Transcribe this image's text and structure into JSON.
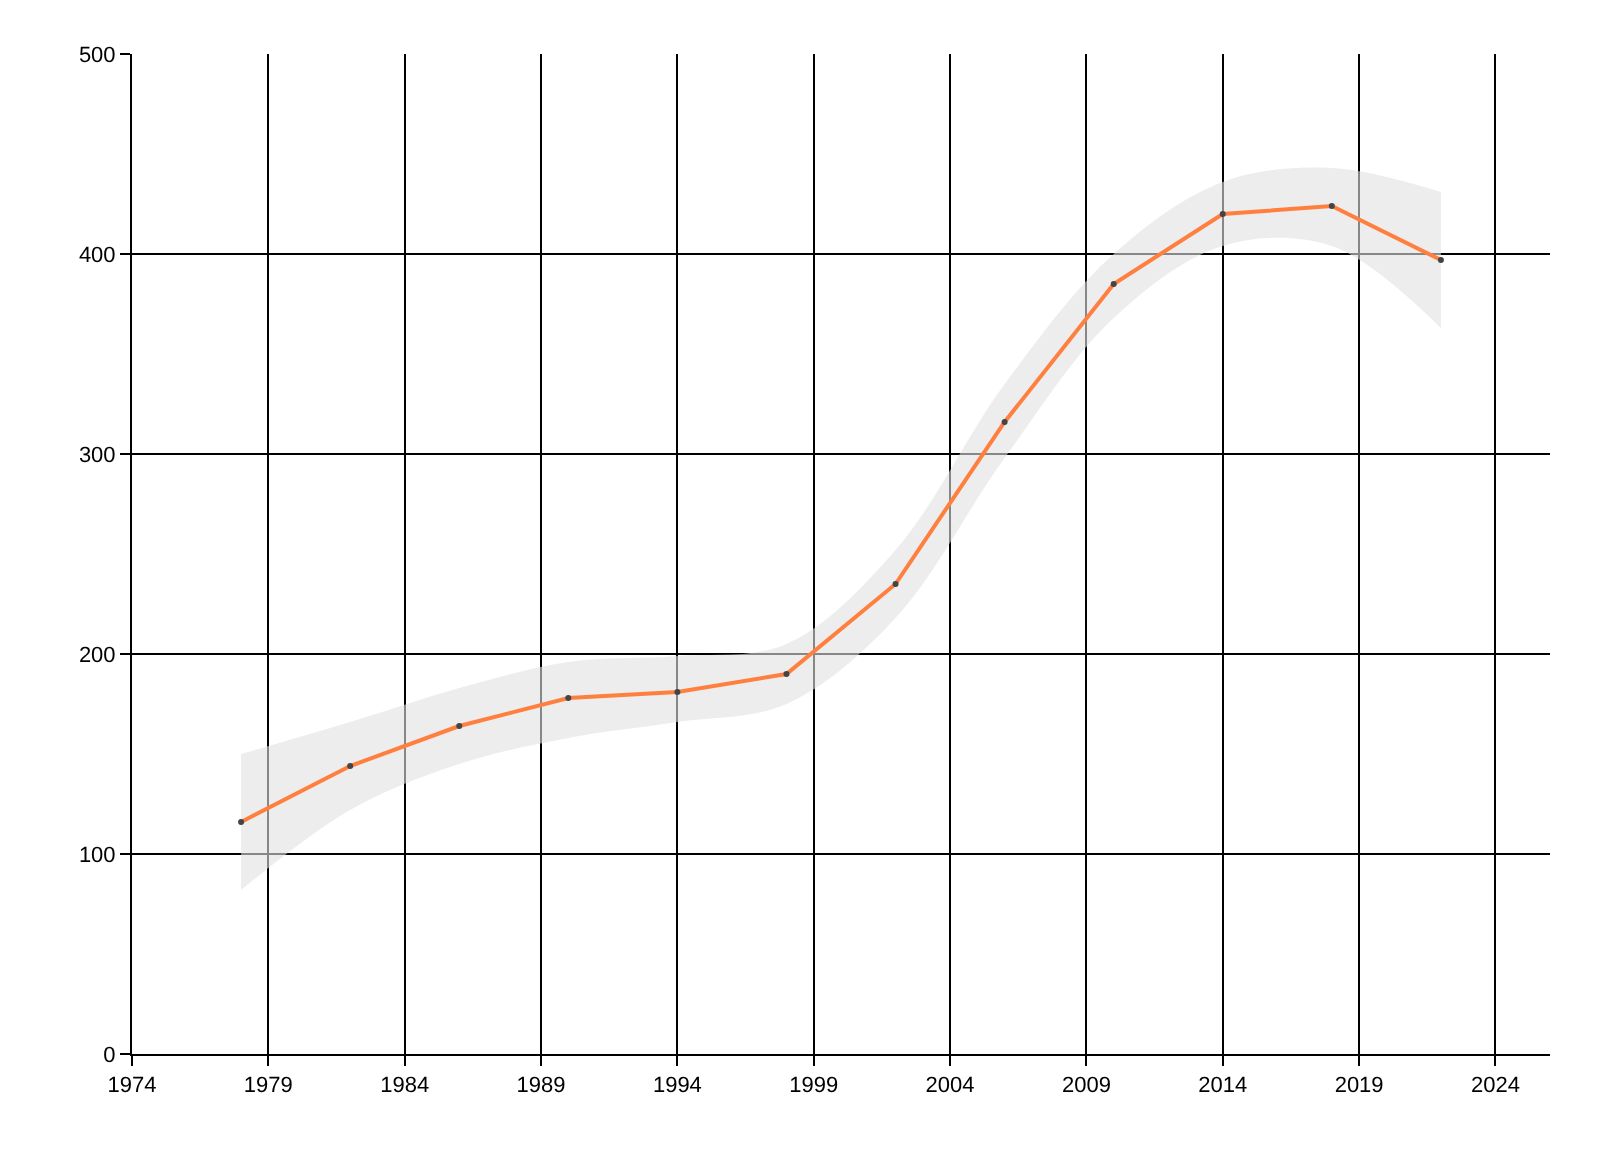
{
  "chart_data": {
    "type": "line",
    "x": [
      1978,
      1982,
      1986,
      1990,
      1994,
      1998,
      2002,
      2006,
      2010,
      2014,
      2018,
      2022
    ],
    "series": [
      {
        "color": "#ff7f3f",
        "values": [
          116,
          144,
          164,
          178,
          181,
          190,
          235,
          316,
          385,
          420,
          424,
          397
        ],
        "lower": [
          82,
          122,
          145,
          158,
          166,
          175,
          218,
          298,
          368,
          404,
          404,
          363
        ],
        "upper": [
          150,
          166,
          183,
          196,
          199,
          205,
          252,
          335,
          400,
          436,
          443,
          431
        ]
      }
    ],
    "xlim": [
      1974,
      2026
    ],
    "xticks": [
      1974,
      1979,
      1984,
      1989,
      1994,
      1999,
      2004,
      2009,
      2014,
      2019,
      2024
    ],
    "ylim": [
      0,
      500
    ],
    "yticks": [
      0,
      100,
      200,
      300,
      400,
      500
    ],
    "grid": true,
    "marker": "circle",
    "line_style": "solid"
  }
}
